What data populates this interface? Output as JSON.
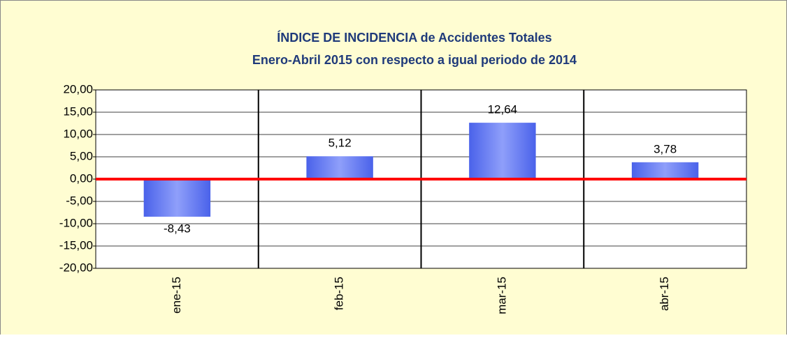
{
  "chart_data": {
    "type": "bar",
    "title": "ÍNDICE DE INCIDENCIA de Accidentes Totales",
    "subtitle": "Enero-Abril 2015 con respecto a igual periodo de 2014",
    "categories": [
      "ene-15",
      "feb-15",
      "mar-15",
      "abr-15"
    ],
    "values": [
      -8.43,
      5.12,
      12.64,
      3.78
    ],
    "value_labels": [
      "-8,43",
      "5,12",
      "12,64",
      "3,78"
    ],
    "color": "#5a72f0",
    "zero_line_color": "#ff0000",
    "ylim": [
      -20,
      20
    ],
    "yticks": [
      {
        "value": -20,
        "label": "-20,00"
      },
      {
        "value": -15,
        "label": "-15,00"
      },
      {
        "value": -10,
        "label": "-10,00"
      },
      {
        "value": -5,
        "label": "-5,00"
      },
      {
        "value": 0,
        "label": "0,00"
      },
      {
        "value": 5,
        "label": "5,00"
      },
      {
        "value": 10,
        "label": "10,00"
      },
      {
        "value": 15,
        "label": "15,00"
      },
      {
        "value": 20,
        "label": "20,00"
      }
    ],
    "grid": true
  }
}
